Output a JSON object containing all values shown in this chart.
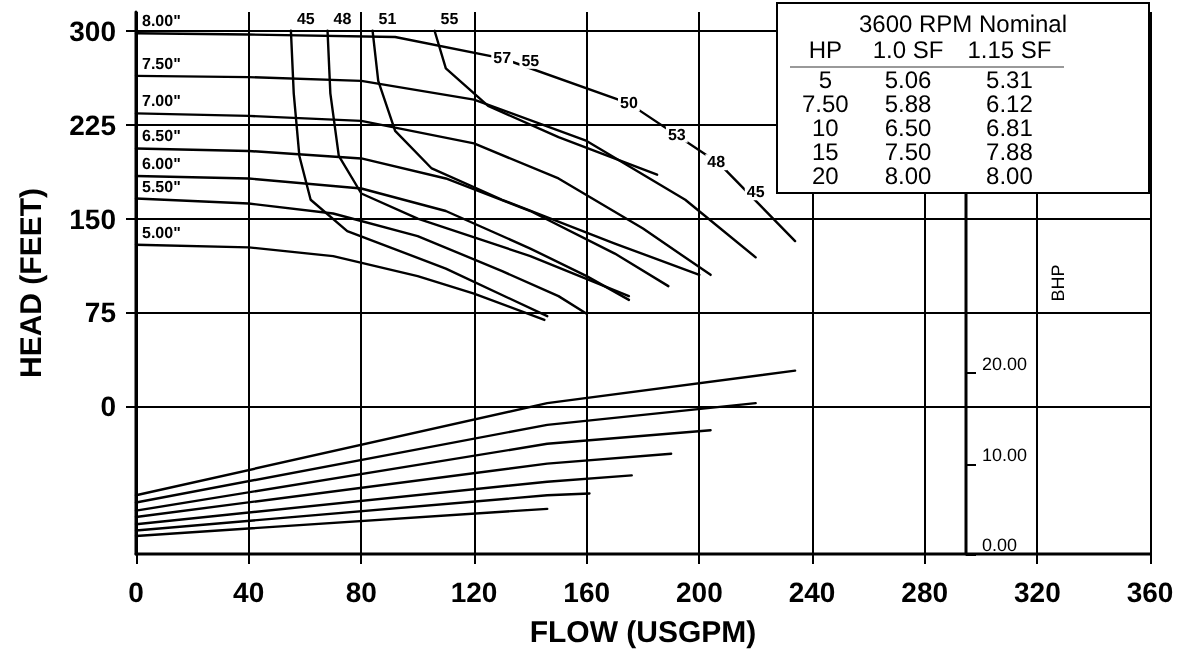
{
  "chart_data": {
    "type": "line",
    "xlabel": "FLOW (USGPM)",
    "ylabel": "HEAD (FEET)",
    "y2label": "BHP",
    "xlim": [
      0,
      360
    ],
    "xticks": [
      0,
      40,
      80,
      120,
      160,
      200,
      240,
      280,
      320,
      360
    ],
    "ylim": [
      -118,
      315
    ],
    "yticks": [
      0,
      75,
      150,
      225,
      300
    ],
    "y2lim": [
      0,
      60
    ],
    "y2ticks": [
      {
        "value": 0,
        "label": "0.00"
      },
      {
        "value": 10,
        "label": "10.00"
      },
      {
        "value": 20,
        "label": "20.00"
      }
    ],
    "grid": true,
    "legend": false,
    "marker": "none",
    "line_style": "solid",
    "series": [
      {
        "name": "8.00\"",
        "color": "#000000",
        "x": [
          0,
          40,
          92,
          130,
          175,
          207,
          234
        ],
        "values": [
          298,
          297,
          295,
          278,
          242,
          194,
          132
        ]
      },
      {
        "name": "7.50\"",
        "color": "#000000",
        "x": [
          0,
          40,
          80,
          120,
          160,
          195,
          220
        ],
        "values": [
          264,
          263,
          260,
          245,
          212,
          165,
          119
        ]
      },
      {
        "name": "7.00\"",
        "color": "#000000",
        "x": [
          0,
          40,
          80,
          120,
          150,
          180,
          204
        ],
        "values": [
          234,
          232,
          228,
          210,
          182,
          142,
          105
        ]
      },
      {
        "name": "6.50\"",
        "color": "#000000",
        "x": [
          0,
          40,
          80,
          110,
          140,
          170,
          189
        ],
        "values": [
          206,
          204,
          198,
          182,
          156,
          122,
          96
        ]
      },
      {
        "name": "6.00\"",
        "color": "#000000",
        "x": [
          0,
          40,
          80,
          110,
          140,
          160,
          175
        ],
        "values": [
          184,
          182,
          174,
          156,
          126,
          104,
          85
        ]
      },
      {
        "name": "5.50\"",
        "color": "#000000",
        "x": [
          0,
          40,
          70,
          100,
          130,
          150,
          160
        ],
        "values": [
          166,
          162,
          154,
          136,
          108,
          88,
          74
        ]
      },
      {
        "name": "5.00\"",
        "color": "#000000",
        "x": [
          0,
          40,
          70,
          100,
          120,
          145
        ],
        "values": [
          129,
          127,
          120,
          104,
          90,
          69
        ]
      },
      {
        "name": "45",
        "color": "#000000",
        "x": [
          55,
          56,
          58,
          62,
          75,
          110,
          146
        ],
        "values": [
          300,
          250,
          200,
          165,
          140,
          110,
          72
        ]
      },
      {
        "name": "48",
        "color": "#000000",
        "x": [
          68,
          69,
          72,
          80,
          100,
          140,
          175
        ],
        "values": [
          300,
          250,
          200,
          170,
          150,
          120,
          88
        ]
      },
      {
        "name": "51",
        "color": "#000000",
        "x": [
          84,
          86,
          92,
          105,
          130,
          170,
          200
        ],
        "values": [
          300,
          260,
          220,
          190,
          165,
          130,
          105
        ]
      },
      {
        "name": "55",
        "color": "#000000",
        "x": [
          106,
          110,
          125,
          150,
          185
        ],
        "values": [
          300,
          270,
          240,
          215,
          185
        ]
      },
      {
        "color": "#000000",
        "axis": "y2",
        "x": [
          0,
          146,
          234
        ],
        "values": [
          6.5,
          16.7,
          20.3
        ]
      },
      {
        "color": "#000000",
        "axis": "y2",
        "x": [
          0,
          146,
          220
        ],
        "values": [
          5.7,
          14.3,
          16.7
        ]
      },
      {
        "color": "#000000",
        "axis": "y2",
        "x": [
          0,
          146,
          204
        ],
        "values": [
          4.8,
          12.2,
          13.7
        ]
      },
      {
        "color": "#000000",
        "axis": "y2",
        "x": [
          0,
          146,
          190
        ],
        "values": [
          4.1,
          10.0,
          11.1
        ]
      },
      {
        "color": "#000000",
        "axis": "y2",
        "x": [
          0,
          146,
          176
        ],
        "values": [
          3.3,
          8.0,
          8.7
        ]
      },
      {
        "color": "#000000",
        "axis": "y2",
        "x": [
          0,
          146,
          161
        ],
        "values": [
          2.6,
          6.5,
          6.7
        ]
      },
      {
        "color": "#000000",
        "axis": "y2",
        "x": [
          0,
          146
        ],
        "values": [
          2.0,
          5.0
        ]
      }
    ],
    "annotations": [
      "3600 RPM Nominal",
      "HP",
      "1.0 SF",
      "1.15 SF",
      "5",
      "5.06",
      "5.31",
      "7.50",
      "5.88",
      "6.12",
      "10",
      "6.50",
      "6.81",
      "15",
      "7.50",
      "7.88",
      "20",
      "8.00",
      "8.00",
      {
        "text": "57",
        "x": 130,
        "y": 278
      },
      {
        "text": "55",
        "x": 140,
        "y": 276
      },
      {
        "text": "50",
        "x": 175,
        "y": 242
      },
      {
        "text": "53",
        "x": 192,
        "y": 217
      },
      {
        "text": "48",
        "x": 206,
        "y": 195
      },
      {
        "text": "45",
        "x": 220,
        "y": 171
      }
    ]
  }
}
